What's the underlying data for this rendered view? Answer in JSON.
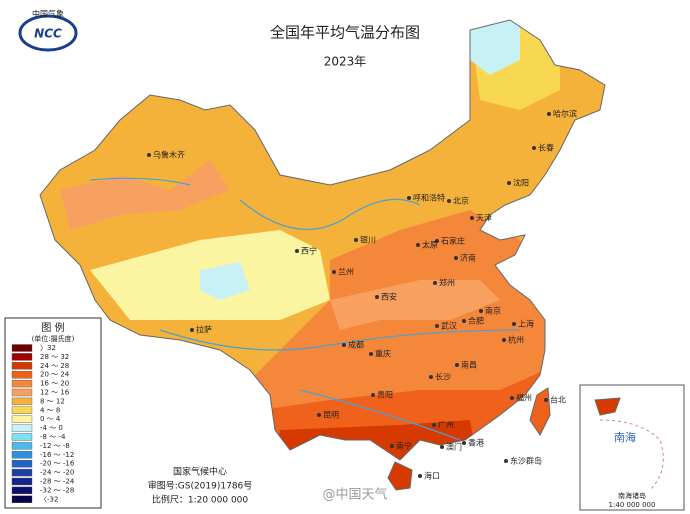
{
  "header": {
    "logo": "中国气象",
    "logo_sub": "NCC",
    "title": "全国年平均气温分布图",
    "subtitle": "2023年"
  },
  "legend": {
    "title": "图 例",
    "unit": "(单位:摄氏度)",
    "items": [
      {
        "label": "〉32",
        "color": "#6e0000"
      },
      {
        "label": "28 ～ 32",
        "color": "#a00000"
      },
      {
        "label": "24 ～ 28",
        "color": "#d63a00"
      },
      {
        "label": "20 ～ 24",
        "color": "#f0621b"
      },
      {
        "label": "16 ～ 20",
        "color": "#f5873a"
      },
      {
        "label": "12 ～ 16",
        "color": "#f7a060"
      },
      {
        "label": "8 ～ 12",
        "color": "#f5b23a"
      },
      {
        "label": "4 ～ 8",
        "color": "#f8d850"
      },
      {
        "label": "0 ～ 4",
        "color": "#fbf4a0"
      },
      {
        "label": "-4 ～ 0",
        "color": "#c8f1f5"
      },
      {
        "label": "-8 ～ -4",
        "color": "#7de0f5"
      },
      {
        "label": "-12 ～ -8",
        "color": "#4db8ef"
      },
      {
        "label": "-16 ～ -12",
        "color": "#2d8fe0"
      },
      {
        "label": "-20 ～ -16",
        "color": "#1f62c8"
      },
      {
        "label": "-24 ～ -20",
        "color": "#1a40a8"
      },
      {
        "label": "-28 ～ -24",
        "color": "#15238c"
      },
      {
        "label": "-32 ～ -28",
        "color": "#0e0e6e"
      },
      {
        "label": "〈-32",
        "color": "#05054a"
      }
    ]
  },
  "cities": [
    "乌鲁木齐",
    "哈尔滨",
    "长春",
    "沈阳",
    "呼和浩特",
    "北京",
    "天津",
    "石家庄",
    "太原",
    "银川",
    "西宁",
    "兰州",
    "济南",
    "郑州",
    "西安",
    "拉萨",
    "成都",
    "重庆",
    "武汉",
    "合肥",
    "南京",
    "上海",
    "杭州",
    "长沙",
    "南昌",
    "贵阳",
    "昆明",
    "福州",
    "台北",
    "广州",
    "南宁",
    "澳门",
    "香港",
    "海口",
    "东沙群岛"
  ],
  "inset": {
    "sea": "南海",
    "title": "南海诸岛",
    "scale": "1:40 000 000"
  },
  "footer": {
    "org": "国家气候中心",
    "approval": "审图号:GS(2019)1786号",
    "scale": "比例尺：1:20 000 000",
    "watermark": "@中国天气"
  }
}
